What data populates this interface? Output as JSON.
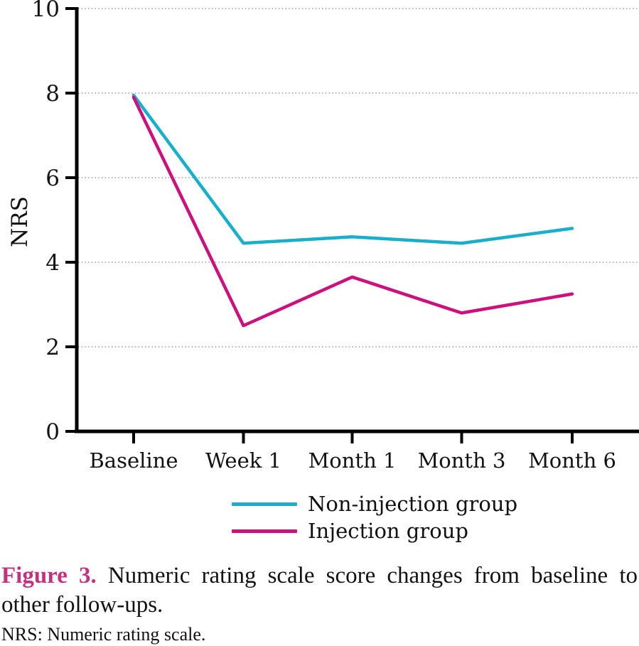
{
  "chart_data": {
    "type": "line",
    "x_categories": [
      "Baseline",
      "Week 1",
      "Month 1",
      "Month 3",
      "Month 6"
    ],
    "series": [
      {
        "name": "Non-injection group",
        "color": "#18AFCC",
        "values": [
          7.95,
          4.45,
          4.6,
          4.45,
          4.8
        ]
      },
      {
        "name": "Injection group",
        "color": "#CE107C",
        "values": [
          7.9,
          2.5,
          3.65,
          2.8,
          3.25
        ]
      }
    ],
    "title": "",
    "xlabel": "",
    "ylabel": "NRS",
    "ylim": [
      0,
      10
    ],
    "y_ticks": [
      "0",
      "2",
      "4",
      "6",
      "8",
      "10"
    ],
    "grid": "horizontal dotted gridlines at every labeled tick",
    "legend_position": "below-center"
  },
  "legend": {
    "items": [
      {
        "label": "Non-injection group"
      },
      {
        "label": "Injection group"
      }
    ]
  },
  "caption": {
    "figure_label": "Figure 3.",
    "label_color": "#C5307F",
    "text": " Numeric rating scale score changes from baseline to other follow-ups.",
    "note": "NRS: Numeric rating scale."
  }
}
